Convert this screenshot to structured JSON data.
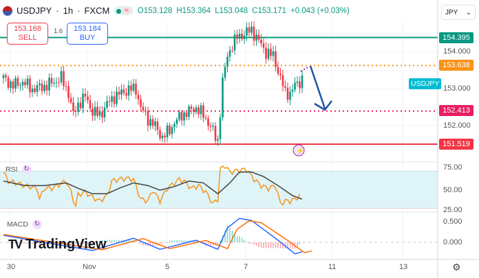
{
  "header": {
    "symbol": "USDJPY",
    "interval": "1h",
    "exchange": "FXCM",
    "separator": "·",
    "status_icon": "market-open-dot",
    "wave_icon": "≈",
    "open": "O153.128",
    "high": "H153.364",
    "low": "L153.048",
    "close": "C153.171",
    "change": "+0.043 (+0.03%)"
  },
  "trade": {
    "sell_price": "153.168",
    "sell_label": "SELL",
    "spread": "1.6",
    "buy_price": "153.184",
    "buy_label": "BUY"
  },
  "currency_select": {
    "value": "JPY",
    "chevron": "⌄"
  },
  "symbol_tag": "USDJPY",
  "price_axis": {
    "ticks": [
      "154.000",
      "153.000",
      "152.000"
    ],
    "levels": [
      {
        "label": "154.395",
        "value": 154.395,
        "color": "#089981",
        "style": "solid"
      },
      {
        "label": "153.638",
        "value": 153.638,
        "color": "#f7931a",
        "style": "dotted"
      },
      {
        "label": "152.413",
        "value": 152.413,
        "color": "#e91e63",
        "style": "dotted"
      },
      {
        "label": "151.519",
        "value": 151.519,
        "color": "#f23645",
        "style": "solid"
      }
    ]
  },
  "time_axis": [
    "30",
    "Nov",
    "5",
    "7",
    "11",
    "13"
  ],
  "rsi": {
    "label": "RSI",
    "ticks": [
      "75.00",
      "50.00",
      "25.00"
    ],
    "band": [
      30,
      70
    ]
  },
  "macd": {
    "label": "MACD",
    "ticks": [
      "0.500",
      "0.000"
    ]
  },
  "logo": {
    "text": "TradingView",
    "mark": "TV"
  },
  "colors": {
    "up": "#089981",
    "down": "#f23645",
    "rsi": "#f7931a",
    "rsi_ma": "#444",
    "macd": "#2962ff",
    "signal": "#ff6d00",
    "arrow": "#1e53a8"
  },
  "chart_data": {
    "type": "candlestick",
    "ylim": [
      151.2,
      154.9
    ],
    "approx_close_path": {
      "x_index": [
        0,
        4,
        8,
        12,
        18,
        24,
        27,
        29,
        31,
        34,
        37,
        40,
        43,
        46,
        49,
        52,
        55,
        57,
        60,
        63,
        66,
        69,
        71,
        74,
        77,
        80,
        83,
        86,
        88,
        89,
        91,
        93,
        95,
        97,
        100,
        103,
        106,
        109,
        112,
        115,
        117,
        119,
        121,
        123,
        124
      ],
      "price": [
        153.3,
        153.1,
        153.2,
        153.0,
        153.1,
        153.3,
        152.9,
        152.3,
        152.6,
        152.8,
        152.4,
        152.3,
        152.6,
        152.8,
        152.9,
        153.0,
        153.0,
        152.5,
        152.2,
        152.0,
        151.7,
        151.9,
        152.1,
        152.3,
        152.4,
        152.5,
        152.3,
        152.0,
        151.7,
        151.6,
        153.2,
        153.9,
        154.2,
        154.4,
        154.5,
        154.6,
        154.3,
        154.0,
        153.9,
        153.3,
        152.9,
        152.9,
        153.1,
        153.2,
        153.3
      ]
    },
    "rsi": {
      "x_index": [
        0,
        2,
        5,
        9,
        14,
        15,
        17,
        20,
        23,
        26,
        28,
        30,
        31,
        34,
        37,
        40,
        43,
        45,
        48,
        51,
        54,
        57,
        60,
        62,
        65,
        68,
        71,
        73,
        75,
        78,
        81,
        84,
        87,
        89,
        90,
        92,
        94,
        98,
        101,
        104,
        107,
        110,
        113,
        115,
        117,
        119,
        121,
        123
      ],
      "value": [
        70,
        60,
        58,
        55,
        52,
        40,
        52,
        52,
        56,
        60,
        48,
        32,
        45,
        48,
        42,
        38,
        44,
        60,
        62,
        63,
        62,
        40,
        38,
        50,
        38,
        52,
        58,
        62,
        60,
        52,
        55,
        48,
        35,
        40,
        73,
        77,
        70,
        72,
        73,
        62,
        55,
        52,
        55,
        35,
        38,
        38,
        40,
        44
      ]
    },
    "rsi_ma": {
      "x_index": [
        0,
        9,
        17,
        26,
        31,
        37,
        43,
        48,
        54,
        60,
        65,
        71,
        77,
        83,
        89,
        94,
        98,
        103,
        108,
        114,
        120,
        124
      ],
      "value": [
        60,
        55,
        55,
        58,
        52,
        46,
        46,
        52,
        58,
        55,
        50,
        54,
        60,
        58,
        46,
        58,
        70,
        70,
        65,
        55,
        44,
        40
      ]
    },
    "macd": {
      "x_index": [
        0,
        37,
        54,
        65,
        80,
        89,
        93,
        98,
        103,
        114,
        121,
        124
      ],
      "value": [
        0.17,
        -0.2,
        0.1,
        -0.17,
        0.05,
        -0.17,
        0.35,
        0.58,
        0.53,
        0.05,
        -0.28,
        -0.23
      ]
    }
  }
}
